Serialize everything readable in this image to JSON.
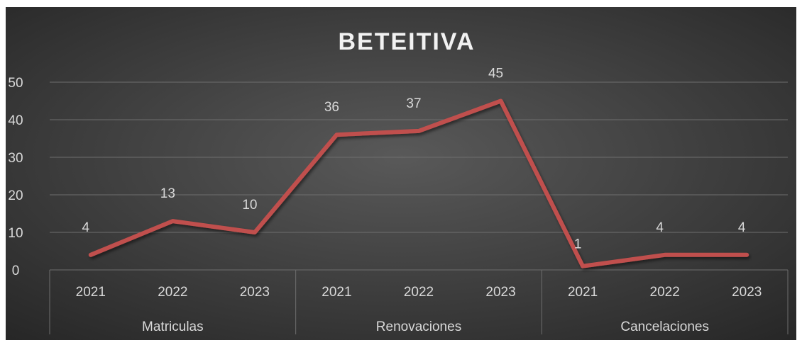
{
  "chart_data": {
    "type": "line",
    "title": "BETEITIVA",
    "groups": [
      {
        "name": "Matriculas",
        "years": [
          "2021",
          "2022",
          "2023"
        ]
      },
      {
        "name": "Renovaciones",
        "years": [
          "2021",
          "2022",
          "2023"
        ]
      },
      {
        "name": "Cancelaciones",
        "years": [
          "2021",
          "2022",
          "2023"
        ]
      }
    ],
    "values": [
      4,
      13,
      10,
      36,
      37,
      45,
      1,
      4,
      4
    ],
    "data_labels": [
      "4",
      "13",
      "10",
      "36",
      "37",
      "45",
      "1",
      "4",
      "4"
    ],
    "ylim": [
      0,
      50
    ],
    "yticks": [
      "0",
      "10",
      "20",
      "30",
      "40",
      "50"
    ],
    "ytick_values": [
      0,
      10,
      20,
      30,
      40,
      50
    ],
    "grid": true,
    "legend": "none",
    "colors": {
      "line": "#c0504d",
      "background_center": "#595959",
      "background_edge": "#262626",
      "grid": "#6e6e6e",
      "text": "#d9d9d9"
    }
  }
}
